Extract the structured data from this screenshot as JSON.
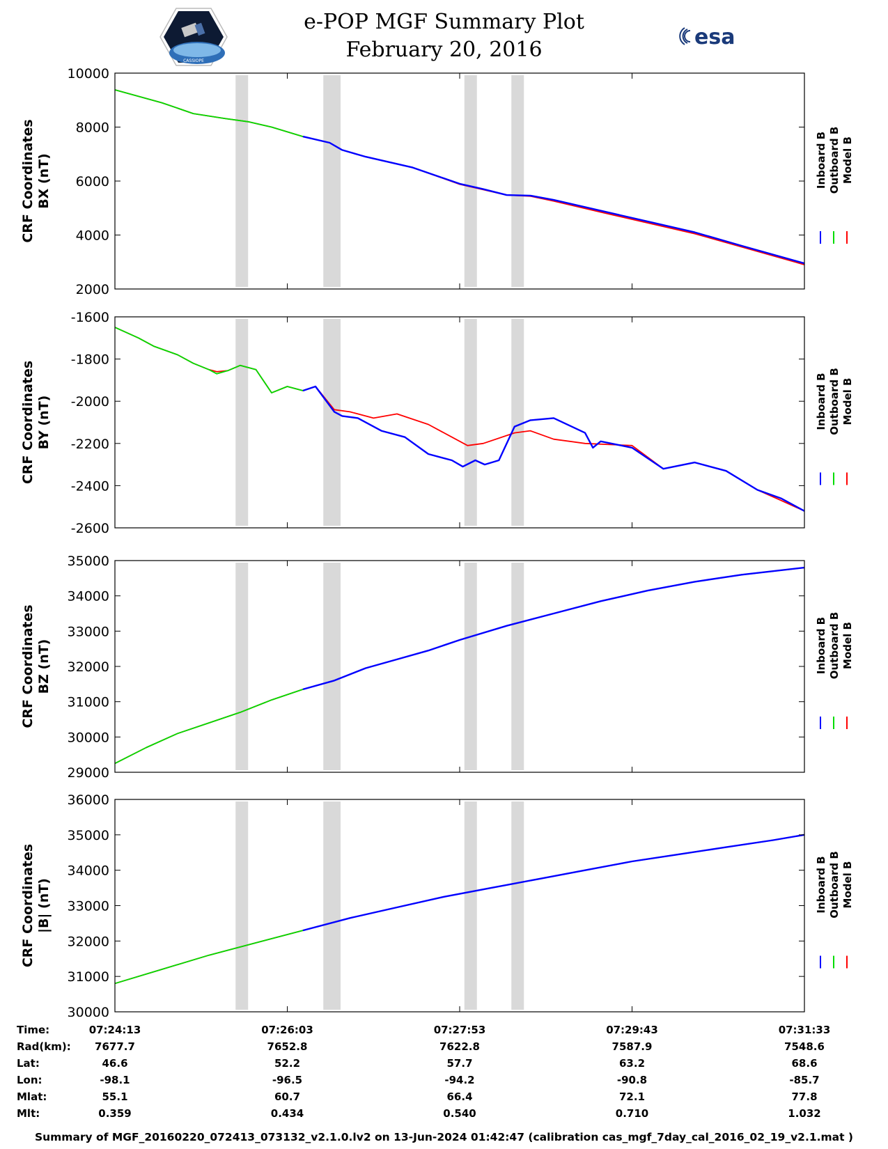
{
  "title": {
    "line1": "e-POP MGF Summary Plot",
    "line2": "February 20, 2016"
  },
  "logos": {
    "left": "cassiope-mission-logo",
    "left_text": "CASSIOPE",
    "right": "esa-logo",
    "right_text": "esa"
  },
  "colors": {
    "inboard": "#0000ff",
    "outboard": "#00dd00",
    "model": "#ff0000",
    "gap_shade": "#d9d9d9"
  },
  "chart_data": [
    {
      "type": "line",
      "ylabel": [
        "CRF Coordinates",
        "BX (nT)"
      ],
      "ylim": [
        2000,
        10000
      ],
      "yticks": [
        "10000",
        "8000",
        "6000",
        "4000",
        "2000"
      ],
      "yticks_values": [
        10000,
        8000,
        6000,
        4000,
        2000
      ],
      "legend": [
        "Inboard B",
        "Outboard B",
        "Model B"
      ],
      "legend_placement": "right",
      "xlim": [
        0,
        440
      ],
      "gap_intervals_s": [
        [
          77,
          85
        ],
        [
          133,
          144
        ],
        [
          223,
          231
        ],
        [
          253,
          261
        ]
      ],
      "series": [
        {
          "name": "Outboard B",
          "color": "green",
          "x": [
            0,
            30,
            50,
            70,
            85,
            100,
            120
          ],
          "y": [
            9380,
            8900,
            8500,
            8320,
            8200,
            8000,
            7650
          ]
        },
        {
          "name": "Inboard B",
          "color": "blue",
          "x": [
            120,
            137,
            145,
            160,
            190,
            220,
            235,
            250,
            265,
            280,
            310,
            340,
            370,
            400,
            440
          ],
          "y": [
            7650,
            7420,
            7150,
            6900,
            6500,
            5900,
            5700,
            5480,
            5460,
            5300,
            4900,
            4500,
            4100,
            3600,
            2950
          ]
        },
        {
          "name": "Model B",
          "color": "red",
          "x": [
            0,
            30,
            50,
            70,
            85,
            100,
            120,
            137,
            145,
            160,
            190,
            220,
            235,
            250,
            265,
            280,
            310,
            340,
            370,
            400,
            440
          ],
          "y": [
            9380,
            8900,
            8500,
            8320,
            8200,
            8000,
            7650,
            7420,
            7150,
            6900,
            6500,
            5880,
            5680,
            5480,
            5440,
            5260,
            4850,
            4450,
            4050,
            3560,
            2900
          ]
        }
      ]
    },
    {
      "type": "line",
      "ylabel": [
        "CRF Coordinates",
        "BY (nT)"
      ],
      "ylim": [
        -2600,
        -1600
      ],
      "yticks": [
        "-1600",
        "-1800",
        "-2000",
        "-2200",
        "-2400",
        "-2600"
      ],
      "yticks_values": [
        -1600,
        -1800,
        -2000,
        -2200,
        -2400,
        -2600
      ],
      "legend": [
        "Inboard B",
        "Outboard B",
        "Model B"
      ],
      "legend_placement": "right",
      "xlim": [
        0,
        440
      ],
      "gap_intervals_s": [
        [
          77,
          85
        ],
        [
          133,
          144
        ],
        [
          223,
          231
        ],
        [
          253,
          261
        ]
      ],
      "series": [
        {
          "name": "Outboard B",
          "color": "green",
          "x": [
            0,
            15,
            25,
            40,
            50,
            60,
            65,
            72,
            80,
            90,
            100,
            110,
            120
          ],
          "y": [
            -1650,
            -1700,
            -1740,
            -1780,
            -1820,
            -1850,
            -1870,
            -1855,
            -1830,
            -1850,
            -1960,
            -1930,
            -1950
          ]
        },
        {
          "name": "Inboard B",
          "color": "blue",
          "x": [
            120,
            128,
            140,
            145,
            155,
            170,
            185,
            200,
            215,
            222,
            230,
            236,
            245,
            255,
            265,
            280,
            300,
            305,
            310,
            330,
            350,
            370,
            390,
            410,
            425,
            440
          ],
          "y": [
            -1950,
            -1930,
            -2050,
            -2070,
            -2080,
            -2140,
            -2170,
            -2250,
            -2280,
            -2310,
            -2280,
            -2300,
            -2280,
            -2120,
            -2090,
            -2080,
            -2150,
            -2220,
            -2190,
            -2220,
            -2320,
            -2290,
            -2330,
            -2420,
            -2460,
            -2520
          ]
        },
        {
          "name": "Model B",
          "color": "red",
          "x": [
            0,
            15,
            25,
            40,
            50,
            60,
            65,
            72,
            80,
            90,
            100,
            110,
            120,
            128,
            140,
            150,
            165,
            180,
            200,
            215,
            225,
            235,
            255,
            265,
            280,
            300,
            330,
            350,
            370,
            390,
            410,
            425,
            440
          ],
          "y": [
            -1650,
            -1700,
            -1740,
            -1780,
            -1820,
            -1850,
            -1860,
            -1855,
            -1830,
            -1850,
            -1960,
            -1930,
            -1950,
            -1930,
            -2040,
            -2050,
            -2080,
            -2060,
            -2110,
            -2170,
            -2210,
            -2200,
            -2150,
            -2140,
            -2180,
            -2200,
            -2210,
            -2320,
            -2290,
            -2330,
            -2420,
            -2470,
            -2520
          ]
        }
      ]
    },
    {
      "type": "line",
      "ylabel": [
        "CRF Coordinates",
        "BZ (nT)"
      ],
      "ylim": [
        29000,
        35000
      ],
      "yticks": [
        "35000",
        "34000",
        "33000",
        "32000",
        "31000",
        "30000",
        "29000"
      ],
      "yticks_values": [
        35000,
        34000,
        33000,
        32000,
        31000,
        30000,
        29000
      ],
      "legend": [
        "Inboard B",
        "Outboard B",
        "Model B"
      ],
      "legend_placement": "right",
      "xlim": [
        0,
        440
      ],
      "gap_intervals_s": [
        [
          77,
          85
        ],
        [
          133,
          144
        ],
        [
          223,
          231
        ],
        [
          253,
          261
        ]
      ],
      "series": [
        {
          "name": "Outboard B",
          "color": "green",
          "x": [
            0,
            20,
            40,
            60,
            80,
            100,
            120
          ],
          "y": [
            29250,
            29700,
            30100,
            30400,
            30700,
            31050,
            31350
          ]
        },
        {
          "name": "Inboard B",
          "color": "blue",
          "x": [
            120,
            140,
            160,
            180,
            200,
            220,
            250,
            280,
            310,
            340,
            370,
            400,
            440
          ],
          "y": [
            31350,
            31600,
            31950,
            32200,
            32450,
            32750,
            33150,
            33500,
            33850,
            34150,
            34400,
            34600,
            34800
          ]
        },
        {
          "name": "Model B",
          "color": "red",
          "x": [
            0,
            20,
            40,
            60,
            80,
            100,
            120,
            140,
            160,
            180,
            200,
            220,
            250,
            280,
            310,
            340,
            370,
            400,
            440
          ],
          "y": [
            29250,
            29700,
            30100,
            30400,
            30700,
            31050,
            31350,
            31600,
            31950,
            32200,
            32450,
            32750,
            33150,
            33500,
            33850,
            34150,
            34400,
            34600,
            34800
          ]
        }
      ]
    },
    {
      "type": "line",
      "ylabel": [
        "CRF Coordinates",
        "|B| (nT)"
      ],
      "ylim": [
        30000,
        36000
      ],
      "yticks": [
        "36000",
        "35000",
        "34000",
        "33000",
        "32000",
        "31000",
        "30000"
      ],
      "yticks_values": [
        36000,
        35000,
        34000,
        33000,
        32000,
        31000,
        30000
      ],
      "legend": [
        "Inboard B",
        "Outboard B",
        "Model B"
      ],
      "legend_placement": "right",
      "xlim": [
        0,
        440
      ],
      "gap_intervals_s": [
        [
          77,
          85
        ],
        [
          133,
          144
        ],
        [
          223,
          231
        ],
        [
          253,
          261
        ]
      ],
      "series": [
        {
          "name": "Outboard B",
          "color": "green",
          "x": [
            0,
            30,
            60,
            90,
            120
          ],
          "y": [
            30800,
            31200,
            31600,
            31950,
            32300
          ]
        },
        {
          "name": "Inboard B",
          "color": "blue",
          "x": [
            120,
            150,
            180,
            210,
            240,
            270,
            300,
            330,
            360,
            390,
            420,
            440
          ],
          "y": [
            32300,
            32650,
            32950,
            33250,
            33500,
            33750,
            34000,
            34250,
            34450,
            34650,
            34850,
            35000
          ]
        },
        {
          "name": "Model B",
          "color": "red",
          "x": [
            0,
            30,
            60,
            90,
            120,
            150,
            180,
            210,
            240,
            270,
            300,
            330,
            360,
            390,
            420,
            440
          ],
          "y": [
            30800,
            31200,
            31600,
            31950,
            32300,
            32650,
            32950,
            33250,
            33500,
            33750,
            34000,
            34250,
            34450,
            34650,
            34850,
            35000
          ]
        }
      ]
    }
  ],
  "ephemeris": {
    "labels": [
      "Time:",
      "Rad(km):",
      "Lat:",
      "Lon:",
      "Mlat:",
      "Mlt:"
    ],
    "columns": [
      {
        "x_s": 0,
        "values": [
          "07:24:13",
          "7677.7",
          "46.6",
          "-98.1",
          "55.1",
          "0.359"
        ]
      },
      {
        "x_s": 110,
        "values": [
          "07:26:03",
          "7652.8",
          "52.2",
          "-96.5",
          "60.7",
          "0.434"
        ]
      },
      {
        "x_s": 220,
        "values": [
          "07:27:53",
          "7622.8",
          "57.7",
          "-94.2",
          "66.4",
          "0.540"
        ]
      },
      {
        "x_s": 330,
        "values": [
          "07:29:43",
          "7587.9",
          "63.2",
          "-90.8",
          "72.1",
          "0.710"
        ]
      },
      {
        "x_s": 440,
        "values": [
          "07:31:33",
          "7548.6",
          "68.6",
          "-85.7",
          "77.8",
          "1.032"
        ]
      }
    ]
  },
  "footer": "Summary of MGF_20160220_072413_073132_v2.1.0.lv2 on 13-Jun-2024 01:42:47 (calibration cas_mgf_7day_cal_2016_02_19_v2.1.mat )"
}
